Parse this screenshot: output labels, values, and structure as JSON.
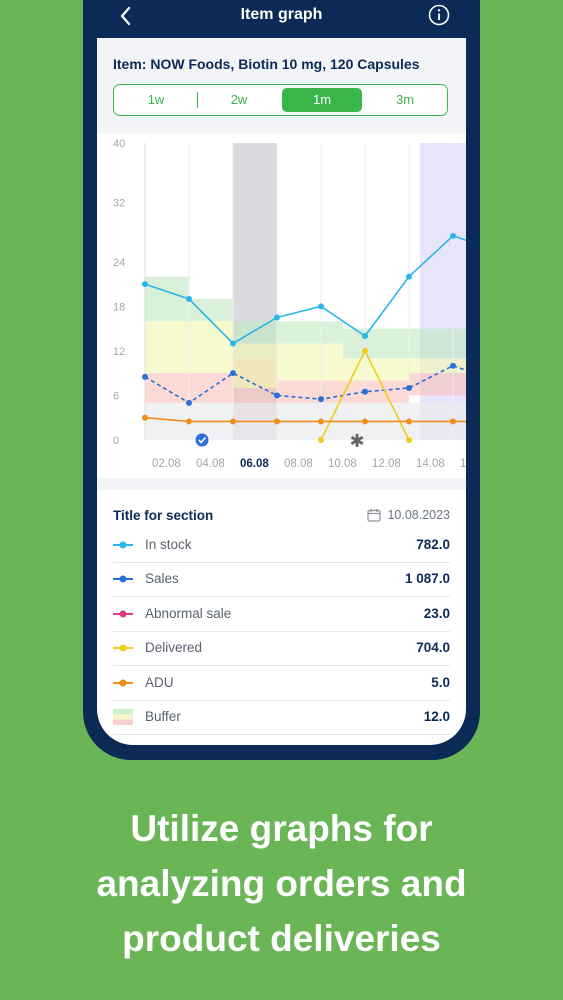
{
  "appbar": {
    "title": "Item graph"
  },
  "header": {
    "item_title": "Item: NOW Foods, Biotin 10 mg, 120 Capsules"
  },
  "periods": [
    {
      "label": "1w",
      "active": false
    },
    {
      "label": "2w",
      "active": false
    },
    {
      "label": "1m",
      "active": true
    },
    {
      "label": "3m",
      "active": false
    }
  ],
  "chart_data": {
    "type": "line",
    "x": [
      "01.08",
      "02.08",
      "03.08",
      "04.08",
      "05.08",
      "06.08",
      "07.08",
      "08.08",
      "09.08",
      "10.08",
      "11.08",
      "12.08",
      "13.08",
      "14.08",
      "15.08",
      "16.08"
    ],
    "xtick_labels": [
      "02.08",
      "04.08",
      "06.08",
      "08.08",
      "10.08",
      "12.08",
      "14.08",
      "1"
    ],
    "highlighted_tick": "06.08",
    "ylim": [
      0,
      40
    ],
    "yticks": [
      0,
      6,
      12,
      18,
      24,
      32,
      40
    ],
    "series": [
      {
        "name": "In stock",
        "color": "#29b6e8",
        "x": [
          "01.08",
          "03.08",
          "05.08",
          "07.08",
          "09.08",
          "11.08",
          "13.08",
          "15.08",
          "16.08"
        ],
        "values": [
          21,
          19,
          13,
          16.5,
          18,
          14,
          22,
          27.5,
          26.5
        ]
      },
      {
        "name": "Sales",
        "color": "#2d6fd8",
        "dashed": true,
        "x": [
          "01.08",
          "03.08",
          "05.08",
          "07.08",
          "09.08",
          "11.08",
          "13.08",
          "15.08",
          "16.08"
        ],
        "values": [
          8.5,
          5,
          9,
          6,
          5.5,
          6.5,
          7,
          10,
          9
        ]
      },
      {
        "name": "Delivered",
        "color": "#f2cc1d",
        "x": [
          "09.08",
          "11.08",
          "13.08"
        ],
        "values": [
          0,
          12,
          0
        ]
      },
      {
        "name": "ADU",
        "color": "#f08c1a",
        "x": [
          "01.08",
          "03.08",
          "05.08",
          "07.08",
          "09.08",
          "11.08",
          "13.08",
          "15.08",
          "16.08"
        ],
        "values": [
          3,
          2.5,
          2.5,
          2.5,
          2.5,
          2.5,
          2.5,
          2.5,
          2.5
        ]
      }
    ],
    "buffer_zones": [
      {
        "from": "01.08",
        "to": "03.08",
        "green": [
          16,
          22
        ],
        "yellow": [
          9,
          16
        ],
        "red": [
          5,
          9
        ]
      },
      {
        "from": "03.08",
        "to": "05.08",
        "green": [
          16,
          19
        ],
        "yellow": [
          9,
          16
        ],
        "red": [
          5,
          9
        ]
      },
      {
        "from": "05.08",
        "to": "07.08",
        "green": [
          13,
          16
        ],
        "yellow": [
          7,
          13
        ],
        "red": [
          3,
          11
        ]
      },
      {
        "from": "07.08",
        "to": "10.08",
        "green": [
          13,
          16
        ],
        "yellow": [
          8,
          13
        ],
        "red": [
          5,
          8
        ]
      },
      {
        "from": "10.08",
        "to": "13.08",
        "green": [
          11,
          15
        ],
        "yellow": [
          8,
          11
        ],
        "red": [
          5,
          8
        ]
      },
      {
        "from": "13.08",
        "to": "16.08",
        "green": [
          11,
          15
        ],
        "yellow": [
          9,
          11
        ],
        "red": [
          6,
          9
        ]
      }
    ],
    "gray_band": [
      "05.08",
      "07.08"
    ],
    "purple_band": [
      "14.08",
      "16.08"
    ],
    "markers": [
      {
        "x": "04.08",
        "type": "check-circle-icon"
      },
      {
        "x": "10.08",
        "type": "asterisk-icon"
      }
    ]
  },
  "section": {
    "title": "Title for section",
    "date": "10.08.2023"
  },
  "legend_rows": [
    {
      "label": "In stock",
      "value": "782.0",
      "color": "#29b6e8",
      "icon": "line-dot-icon"
    },
    {
      "label": "Sales",
      "value": "1 087.0",
      "color": "#2d6fd8",
      "icon": "line-dot-icon"
    },
    {
      "label": "Abnormal sale",
      "value": "23.0",
      "color": "#e0397d",
      "icon": "line-dot-icon"
    },
    {
      "label": "Delivered",
      "value": "704.0",
      "color": "#f2cc1d",
      "icon": "line-dot-icon"
    },
    {
      "label": "ADU",
      "value": "5.0",
      "color": "#f08c1a",
      "icon": "line-dot-icon"
    },
    {
      "label": "Buffer",
      "value": "12.0",
      "color": "#f6c9c4",
      "icon": "buffer-swatch-icon"
    }
  ],
  "tagline": [
    "Utilize graphs for",
    "analyzing orders and",
    "product deliveries"
  ]
}
